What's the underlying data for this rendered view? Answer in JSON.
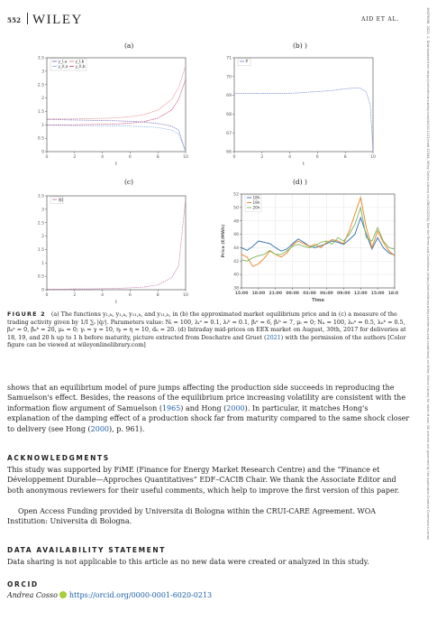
{
  "header": {
    "page_number": "552",
    "journal_logo": "WILEY",
    "running_head": "AID ET AL."
  },
  "side_note": "16479698, 2022, 2, Downloaded from https://onlinelibrary.wiley.com/doi/10.1111/mafi.12344, Wiley Online Library on [08/12/2024]. See the Terms and Conditions (https://onlinelibrary.wiley.com/terms-and-conditions) on Wiley Online Library for rules of use; OA articles are governed by the applicable Creative Commons License",
  "figure": {
    "panels": [
      {
        "label": "(a)"
      },
      {
        "label": "(b) )"
      },
      {
        "label": "(c)"
      },
      {
        "label": "(d) )"
      }
    ],
    "caption": {
      "title": "FIGURE 2",
      "line1": "(a) The functions y",
      "text_a": "(a) The functions y₁,ₖ, y₁,ₖ, y₁₁,ₖ, and y₁₁,ₖ, in (b) the approximated market equilibrium price and in (c) a measure of the trading activity given by",
      "text_b": "1/I ∑ᵢ |q̇ᵢⁱ|. Parameters value: Nᵢ = 100, λᵢᵃ = 0.1, λᵢᵇ = 0.1, βᵢᵃ = 6, βᵢᵇ = 7, μᵢ = 0; Nᵢᵢ = 100, λᵢᵢᵃ = 0.5, λᵢᵢᵇ = 0.5, βᵢᵢᵃ = 0, βᵢᵢᵇ = 20, μᵢᵢ = 0; γᵢ = γ = 10, ηᵢ = η = 10, dᵢᵢ = 20. (d) Intraday mid-prices on EEX market on August, 30th, 2017 for deliveries at 18, 19, and 20 h up to 1 h before maturity, picture extracted from Deschatre and Gruet (",
      "ref_year": "2021",
      "text_c": ") with the permission of the authors [Color figure can be viewed at wileyonlinelibrary.com]"
    }
  },
  "body": {
    "para1_a": "shows that an equilibrium model of pure jumps affecting the production side succeeds in reproducing the Samuelson's effect. Besides, the reasons of the equilibrium price increasing volatility are consistent with the information flow argument of Samuelson (",
    "para1_y1": "1965",
    "para1_b": ") and Hong (",
    "para1_y2": "2000",
    "para1_c": "). In particular, it matches Hong's explanation of the damping effect of a production shock far from maturity compared to the same shock closer to delivery (see Hong (",
    "para1_y3": "2000",
    "para1_d": "), p. 961)."
  },
  "acknowledgments": {
    "heading": "ACKNOWLEDGMENTS",
    "para1": "This study was supported by FiME (Finance for Energy Market Research Centre) and the “Finance et Développement Durable—Approches Quantitatives” EDF–CACIB Chair. We thank the Associate Editor and both anonymous reviewers for their useful comments, which help to improve the first version of this paper.",
    "para2": "Open Access Funding provided by Universita di Bologna within the CRUI-CARE Agreement. WOA Institution: Universita di Bologna."
  },
  "data_availability": {
    "heading": "DATA AVAILABILITY STATEMENT",
    "text": "Data sharing is not applicable to this article as no new data were created or analyzed in this study."
  },
  "orcid": {
    "heading": "ORCID",
    "name": "Andrea Cosso",
    "url": "https://orcid.org/0000-0001-6020-0213"
  },
  "chart_data": [
    {
      "type": "line",
      "title": "(a)",
      "xlabel": "t",
      "xlim": [
        0,
        10
      ],
      "ylim": [
        0,
        3.5
      ],
      "xticks": [
        "0",
        "2",
        "4",
        "6",
        "8",
        "10"
      ],
      "yticks": [
        "0",
        "0.5",
        "1",
        "1.5",
        "2",
        "2.5",
        "3",
        "3.5"
      ],
      "legend": [
        "y_I,a",
        "y_I,b",
        "y_II,a",
        "y_II,b"
      ],
      "legend_position": "top-left",
      "colors": [
        "#7b6fc4",
        "#e58a8a",
        "#8fb8e0",
        "#c44a7a"
      ],
      "x": [
        0,
        1,
        2,
        3,
        4,
        5,
        6,
        7,
        8,
        9,
        9.5,
        10
      ],
      "series": [
        {
          "name": "y_I,a",
          "values": [
            1.2,
            1.19,
            1.18,
            1.17,
            1.16,
            1.15,
            1.13,
            1.1,
            1.05,
            0.95,
            0.8,
            0.0
          ]
        },
        {
          "name": "y_I,b",
          "values": [
            1.22,
            1.22,
            1.22,
            1.23,
            1.24,
            1.26,
            1.3,
            1.38,
            1.55,
            1.95,
            2.4,
            3.2
          ]
        },
        {
          "name": "y_II,a",
          "values": [
            0.98,
            0.98,
            0.97,
            0.97,
            0.96,
            0.96,
            0.95,
            0.93,
            0.9,
            0.8,
            0.65,
            0.0
          ]
        },
        {
          "name": "y_II,b",
          "values": [
            1.0,
            1.0,
            1.0,
            1.01,
            1.02,
            1.03,
            1.06,
            1.12,
            1.25,
            1.55,
            1.95,
            2.7
          ]
        }
      ]
    },
    {
      "type": "line",
      "title": "(b) )",
      "xlabel": "t",
      "xlim": [
        0,
        10
      ],
      "ylim": [
        66,
        71
      ],
      "xticks": [
        "0",
        "2",
        "4",
        "6",
        "8",
        "10"
      ],
      "yticks": [
        "66",
        "67",
        "68",
        "69",
        "70",
        "71"
      ],
      "legend": [
        "P"
      ],
      "legend_position": "top-left",
      "colors": [
        "#7b8fd6"
      ],
      "x": [
        0,
        1,
        2,
        3,
        4,
        5,
        6,
        7,
        8,
        9,
        9.5,
        9.8,
        10
      ],
      "series": [
        {
          "name": "P",
          "values": [
            69.1,
            69.1,
            69.1,
            69.1,
            69.1,
            69.15,
            69.2,
            69.25,
            69.35,
            69.4,
            69.2,
            68.5,
            66.0
          ]
        }
      ]
    },
    {
      "type": "line",
      "title": "(c)",
      "xlabel": "t",
      "xlim": [
        0,
        10
      ],
      "ylim": [
        0,
        3.5
      ],
      "xticks": [
        "0",
        "2",
        "4",
        "6",
        "8",
        "10"
      ],
      "yticks": [
        "0",
        "0.5",
        "1",
        "1.5",
        "2",
        "2.5",
        "3",
        "3.5"
      ],
      "legend": [
        "|q̇|"
      ],
      "legend_position": "top-left",
      "colors": [
        "#c87ab0"
      ],
      "x": [
        0,
        1,
        2,
        3,
        4,
        5,
        6,
        7,
        8,
        9,
        9.5,
        10
      ],
      "series": [
        {
          "name": "|q̇|",
          "values": [
            0.02,
            0.02,
            0.03,
            0.03,
            0.04,
            0.05,
            0.07,
            0.1,
            0.18,
            0.45,
            0.9,
            3.4
          ]
        }
      ]
    },
    {
      "type": "line",
      "title": "(d) )",
      "xlabel": "Time",
      "ylabel": "Price (€/MWh)",
      "xticks": [
        "15:00",
        "18:00",
        "21:00",
        "00:00",
        "03:00",
        "06:00",
        "09:00",
        "12:00",
        "15:00",
        "18:00"
      ],
      "yticks": [
        "38",
        "40",
        "42",
        "44",
        "46",
        "48",
        "50",
        "52"
      ],
      "ylim": [
        38,
        52
      ],
      "grid": true,
      "legend": [
        "18h",
        "19h",
        "20h"
      ],
      "legend_position": "top-left",
      "colors": [
        "#2b6cb0",
        "#e8821e",
        "#7cb55a"
      ],
      "x": [
        0,
        1,
        2,
        3,
        4,
        5,
        6,
        7,
        8,
        9,
        10,
        11,
        12,
        13,
        14,
        15,
        16,
        17,
        18,
        19,
        20,
        21,
        22,
        23,
        24,
        25,
        26,
        27
      ],
      "series": [
        {
          "name": "18h",
          "values": [
            44.0,
            43.6,
            44.2,
            45.0,
            44.8,
            44.6,
            44.0,
            43.5,
            43.8,
            44.6,
            45.3,
            44.8,
            44.2,
            44.0,
            44.3,
            44.6,
            45.0,
            44.8,
            44.5,
            45.2,
            46.0,
            48.5,
            46.0,
            43.8,
            45.5,
            44.0,
            43.2,
            42.9
          ]
        },
        {
          "name": "19h",
          "values": [
            43.0,
            42.6,
            41.2,
            41.6,
            42.4,
            43.5,
            43.0,
            42.6,
            43.2,
            44.4,
            45.0,
            44.6,
            44.2,
            44.5,
            44.0,
            44.8,
            45.2,
            45.0,
            44.6,
            46.5,
            49.0,
            51.5,
            47.0,
            44.0,
            46.5,
            44.8,
            43.5,
            42.8
          ]
        },
        {
          "name": "20h",
          "values": [
            42.2,
            42.0,
            42.5,
            42.8,
            43.0,
            43.6,
            43.0,
            43.0,
            43.5,
            44.2,
            44.5,
            44.2,
            44.0,
            44.3,
            44.8,
            45.0,
            44.5,
            45.5,
            45.0,
            46.0,
            47.5,
            50.0,
            45.5,
            45.0,
            47.0,
            45.0,
            44.0,
            43.8
          ]
        }
      ]
    }
  ]
}
